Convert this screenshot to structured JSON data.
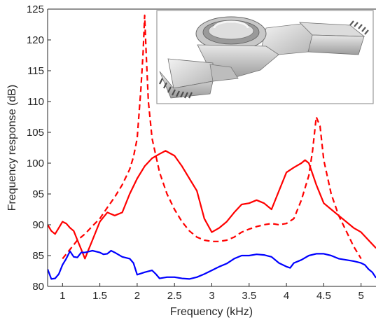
{
  "chart_data": {
    "type": "line",
    "title": "",
    "xlabel": "Frequency (kHz)",
    "ylabel": "Frequency response (dB)",
    "xlim": [
      0.8,
      5.2
    ],
    "ylim": [
      80,
      125
    ],
    "xticks": [
      1,
      1.5,
      2,
      2.5,
      3,
      3.5,
      4,
      4.5,
      5
    ],
    "xtick_labels": [
      "1",
      "1.5",
      "2",
      "2.5",
      "3",
      "3.5",
      "4",
      "4.5",
      "5"
    ],
    "yticks": [
      80,
      85,
      90,
      95,
      100,
      105,
      110,
      115,
      120,
      125
    ],
    "ytick_labels": [
      "80",
      "85",
      "90",
      "95",
      "100",
      "105",
      "110",
      "115",
      "120",
      "125"
    ],
    "grid": false,
    "legend": "none",
    "inset": "grey 3D model of a rectangular waveguide structure with circular chamber (upper right)",
    "series": [
      {
        "color": "#ff0000",
        "style": "dashed",
        "x": [
          1.0,
          1.1,
          1.2,
          1.3,
          1.4,
          1.5,
          1.6,
          1.7,
          1.8,
          1.9,
          1.95,
          2.0,
          2.05,
          2.08,
          2.1,
          2.12,
          2.15,
          2.2,
          2.3,
          2.4,
          2.5,
          2.6,
          2.7,
          2.8,
          2.9,
          3.0,
          3.1,
          3.2,
          3.3,
          3.4,
          3.5,
          3.6,
          3.7,
          3.8,
          3.9,
          4.0,
          4.1,
          4.2,
          4.3,
          4.35,
          4.4,
          4.45,
          4.5,
          4.6,
          4.7,
          4.8,
          4.9,
          5.0
        ],
        "y": [
          84.5,
          86.0,
          87.5,
          88.5,
          89.8,
          91.0,
          92.8,
          94.5,
          96.5,
          99.0,
          101.0,
          104.0,
          112.0,
          118.0,
          124.0,
          118.0,
          110.0,
          104.0,
          98.5,
          95.0,
          92.5,
          90.5,
          89.0,
          88.0,
          87.5,
          87.3,
          87.3,
          87.5,
          88.0,
          88.8,
          89.3,
          89.7,
          90.0,
          90.2,
          90.0,
          90.2,
          91.0,
          94.0,
          98.0,
          102.0,
          107.5,
          106.0,
          100.5,
          95.0,
          91.5,
          89.0,
          86.5,
          84.5
        ]
      },
      {
        "color": "#ff0000",
        "style": "solid",
        "x": [
          0.8,
          0.85,
          0.9,
          0.95,
          1.0,
          1.05,
          1.1,
          1.15,
          1.2,
          1.25,
          1.3,
          1.35,
          1.4,
          1.5,
          1.6,
          1.7,
          1.8,
          1.9,
          2.0,
          2.1,
          2.2,
          2.3,
          2.38,
          2.5,
          2.6,
          2.7,
          2.8,
          2.9,
          3.0,
          3.1,
          3.2,
          3.3,
          3.4,
          3.5,
          3.6,
          3.7,
          3.8,
          3.9,
          4.0,
          4.1,
          4.2,
          4.25,
          4.3,
          4.4,
          4.5,
          4.6,
          4.7,
          4.8,
          4.9,
          5.0,
          5.1,
          5.2
        ],
        "y": [
          90.0,
          89.0,
          88.5,
          89.5,
          90.5,
          90.2,
          89.5,
          89.0,
          87.5,
          86.0,
          84.5,
          86.0,
          87.5,
          90.5,
          92.0,
          91.5,
          92.0,
          95.0,
          97.5,
          99.5,
          100.8,
          101.5,
          102.0,
          101.2,
          99.5,
          97.5,
          95.5,
          91.0,
          88.8,
          89.5,
          90.5,
          92.0,
          93.3,
          93.5,
          94.0,
          93.5,
          92.5,
          95.5,
          98.5,
          99.3,
          100.0,
          100.5,
          100.0,
          96.5,
          93.5,
          92.5,
          91.5,
          90.5,
          89.5,
          88.8,
          87.5,
          86.2
        ]
      },
      {
        "color": "#0000ff",
        "style": "solid",
        "x": [
          0.8,
          0.85,
          0.9,
          0.95,
          1.0,
          1.05,
          1.1,
          1.15,
          1.2,
          1.25,
          1.3,
          1.4,
          1.5,
          1.55,
          1.6,
          1.65,
          1.7,
          1.8,
          1.9,
          1.95,
          2.0,
          2.1,
          2.2,
          2.25,
          2.3,
          2.4,
          2.5,
          2.6,
          2.7,
          2.8,
          2.9,
          3.0,
          3.1,
          3.2,
          3.3,
          3.4,
          3.5,
          3.6,
          3.7,
          3.8,
          3.9,
          4.0,
          4.05,
          4.1,
          4.2,
          4.3,
          4.4,
          4.5,
          4.6,
          4.7,
          4.8,
          4.9,
          5.0,
          5.05,
          5.1,
          5.15,
          5.2
        ],
        "y": [
          82.8,
          81.2,
          81.3,
          82.0,
          83.5,
          84.5,
          85.7,
          84.8,
          84.7,
          85.5,
          85.5,
          85.8,
          85.5,
          85.2,
          85.3,
          85.8,
          85.5,
          84.8,
          84.5,
          83.8,
          81.9,
          82.3,
          82.6,
          82.0,
          81.3,
          81.5,
          81.5,
          81.3,
          81.2,
          81.5,
          82.0,
          82.6,
          83.2,
          83.7,
          84.5,
          85.0,
          85.0,
          85.2,
          85.1,
          84.8,
          83.8,
          83.2,
          83.0,
          83.8,
          84.3,
          85.0,
          85.3,
          85.3,
          85.0,
          84.5,
          84.3,
          84.1,
          83.8,
          83.5,
          82.8,
          82.3,
          81.4
        ]
      }
    ]
  }
}
